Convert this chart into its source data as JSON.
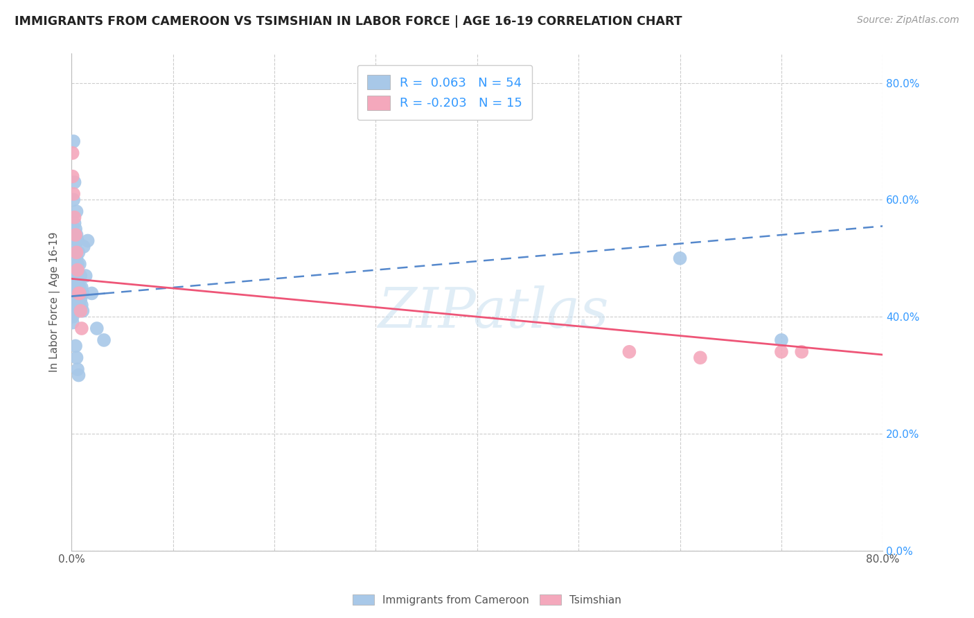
{
  "title": "IMMIGRANTS FROM CAMEROON VS TSIMSHIAN IN LABOR FORCE | AGE 16-19 CORRELATION CHART",
  "source": "Source: ZipAtlas.com",
  "ylabel": "In Labor Force | Age 16-19",
  "xlim": [
    0.0,
    0.8
  ],
  "ylim": [
    0.0,
    0.85
  ],
  "ytick_positions": [
    0.0,
    0.2,
    0.4,
    0.6,
    0.8
  ],
  "xtick_positions": [
    0.0,
    0.1,
    0.2,
    0.3,
    0.4,
    0.5,
    0.6,
    0.7,
    0.8
  ],
  "cameroon_R": 0.063,
  "cameroon_N": 54,
  "tsimshian_R": -0.203,
  "tsimshian_N": 15,
  "cameroon_dot_color": "#a8c8e8",
  "tsimshian_dot_color": "#f4a8bc",
  "cameroon_line_color": "#5588cc",
  "tsimshian_line_color": "#ee5577",
  "legend_label_cameroon": "Immigrants from Cameroon",
  "legend_label_tsimshian": "Tsimshian",
  "watermark": "ZIPatlas",
  "cam_x": [
    0.001,
    0.001,
    0.001,
    0.001,
    0.001,
    0.002,
    0.002,
    0.002,
    0.002,
    0.003,
    0.003,
    0.003,
    0.003,
    0.003,
    0.004,
    0.004,
    0.004,
    0.004,
    0.005,
    0.005,
    0.005,
    0.005,
    0.005,
    0.006,
    0.006,
    0.006,
    0.006,
    0.007,
    0.007,
    0.007,
    0.007,
    0.008,
    0.008,
    0.008,
    0.009,
    0.009,
    0.01,
    0.01,
    0.011,
    0.011,
    0.012,
    0.014,
    0.016,
    0.02,
    0.025,
    0.032,
    0.003,
    0.002,
    0.004,
    0.005,
    0.006,
    0.007,
    0.6,
    0.7
  ],
  "cam_y": [
    0.43,
    0.42,
    0.41,
    0.4,
    0.39,
    0.6,
    0.44,
    0.43,
    0.42,
    0.56,
    0.52,
    0.48,
    0.46,
    0.44,
    0.55,
    0.51,
    0.47,
    0.44,
    0.58,
    0.54,
    0.5,
    0.46,
    0.43,
    0.53,
    0.49,
    0.45,
    0.42,
    0.51,
    0.47,
    0.44,
    0.41,
    0.49,
    0.45,
    0.42,
    0.47,
    0.43,
    0.45,
    0.42,
    0.44,
    0.41,
    0.52,
    0.47,
    0.53,
    0.44,
    0.38,
    0.36,
    0.63,
    0.7,
    0.35,
    0.33,
    0.31,
    0.3,
    0.5,
    0.36
  ],
  "tsi_x": [
    0.001,
    0.001,
    0.002,
    0.003,
    0.004,
    0.005,
    0.006,
    0.007,
    0.008,
    0.009,
    0.01,
    0.55,
    0.62,
    0.7,
    0.72
  ],
  "tsi_y": [
    0.68,
    0.64,
    0.61,
    0.57,
    0.54,
    0.51,
    0.48,
    0.44,
    0.44,
    0.41,
    0.38,
    0.34,
    0.33,
    0.34,
    0.34
  ],
  "cam_line_x0": 0.0,
  "cam_line_x_break": 0.032,
  "cam_line_x1": 0.8,
  "cam_line_y0": 0.435,
  "cam_line_y1": 0.555,
  "tsi_line_x0": 0.0,
  "tsi_line_x1": 0.8,
  "tsi_line_y0": 0.465,
  "tsi_line_y1": 0.335
}
